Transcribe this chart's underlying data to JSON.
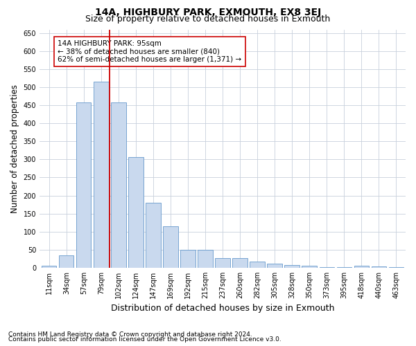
{
  "title_line1": "14A, HIGHBURY PARK, EXMOUTH, EX8 3EJ",
  "title_line2": "Size of property relative to detached houses in Exmouth",
  "xlabel": "Distribution of detached houses by size in Exmouth",
  "ylabel": "Number of detached properties",
  "categories": [
    "11sqm",
    "34sqm",
    "57sqm",
    "79sqm",
    "102sqm",
    "124sqm",
    "147sqm",
    "169sqm",
    "192sqm",
    "215sqm",
    "237sqm",
    "260sqm",
    "282sqm",
    "305sqm",
    "328sqm",
    "350sqm",
    "373sqm",
    "395sqm",
    "418sqm",
    "440sqm",
    "463sqm"
  ],
  "values": [
    5,
    35,
    458,
    516,
    457,
    307,
    180,
    114,
    50,
    50,
    27,
    27,
    18,
    12,
    8,
    5,
    2,
    1,
    5,
    4,
    1
  ],
  "bar_color": "#c9d9ee",
  "bar_edge_color": "#6699cc",
  "vline_x": 3.5,
  "vline_color": "#cc0000",
  "annotation_text": "14A HIGHBURY PARK: 95sqm\n← 38% of detached houses are smaller (840)\n62% of semi-detached houses are larger (1,371) →",
  "annotation_box_color": "#ffffff",
  "annotation_box_edge": "#cc0000",
  "ylim": [
    0,
    660
  ],
  "yticks": [
    0,
    50,
    100,
    150,
    200,
    250,
    300,
    350,
    400,
    450,
    500,
    550,
    600,
    650
  ],
  "background_color": "#ffffff",
  "grid_color": "#c8d0dc",
  "footer_line1": "Contains HM Land Registry data © Crown copyright and database right 2024.",
  "footer_line2": "Contains public sector information licensed under the Open Government Licence v3.0.",
  "title1_fontsize": 10,
  "title2_fontsize": 9,
  "ylabel_fontsize": 8.5,
  "xlabel_fontsize": 9,
  "tick_fontsize": 7,
  "annotation_fontsize": 7.5,
  "footer_fontsize": 6.5
}
